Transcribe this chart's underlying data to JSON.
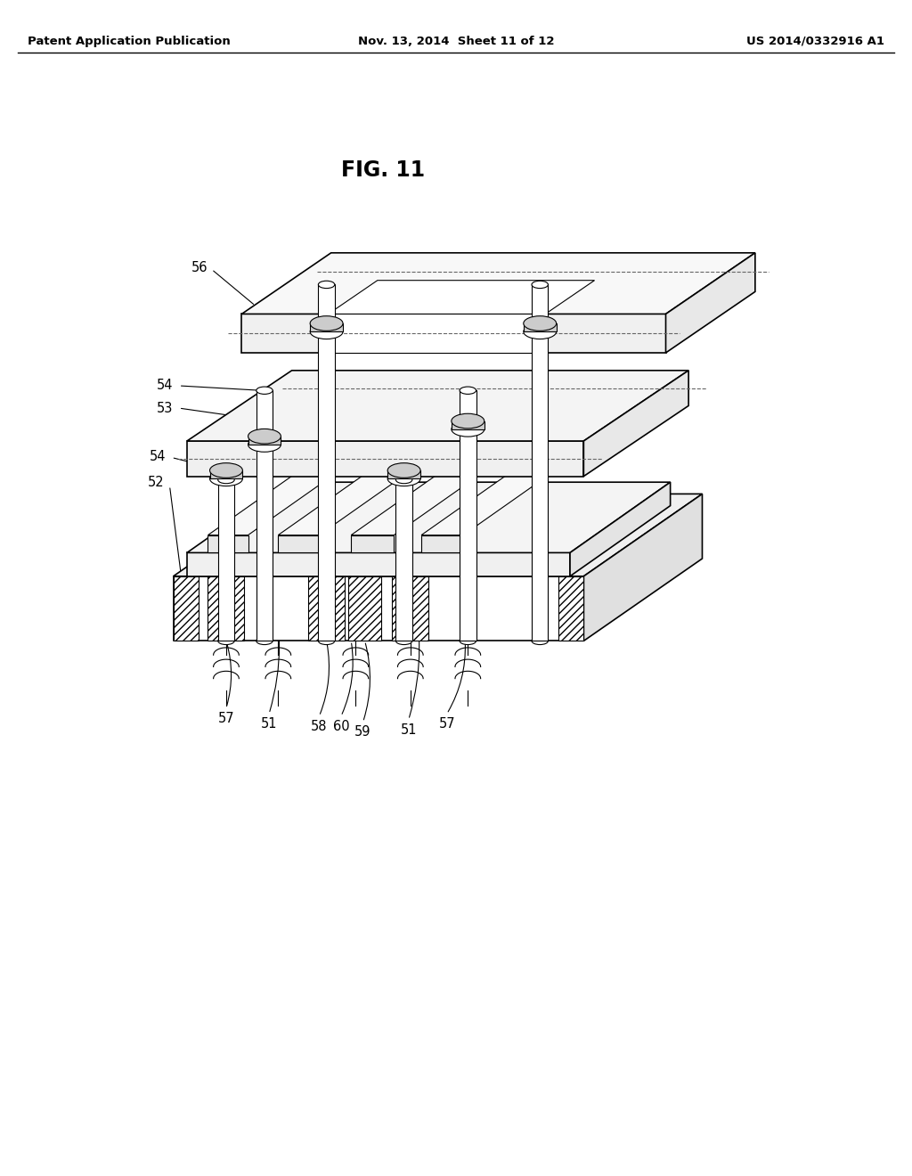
{
  "header_left": "Patent Application Publication",
  "header_mid": "Nov. 13, 2014  Sheet 11 of 12",
  "header_right": "US 2014/0332916 A1",
  "fig_label": "FIG. 11",
  "background_color": "#ffffff",
  "line_color": "#000000",
  "light_gray": "#d0d0d0",
  "mid_gray": "#b0b0b0"
}
